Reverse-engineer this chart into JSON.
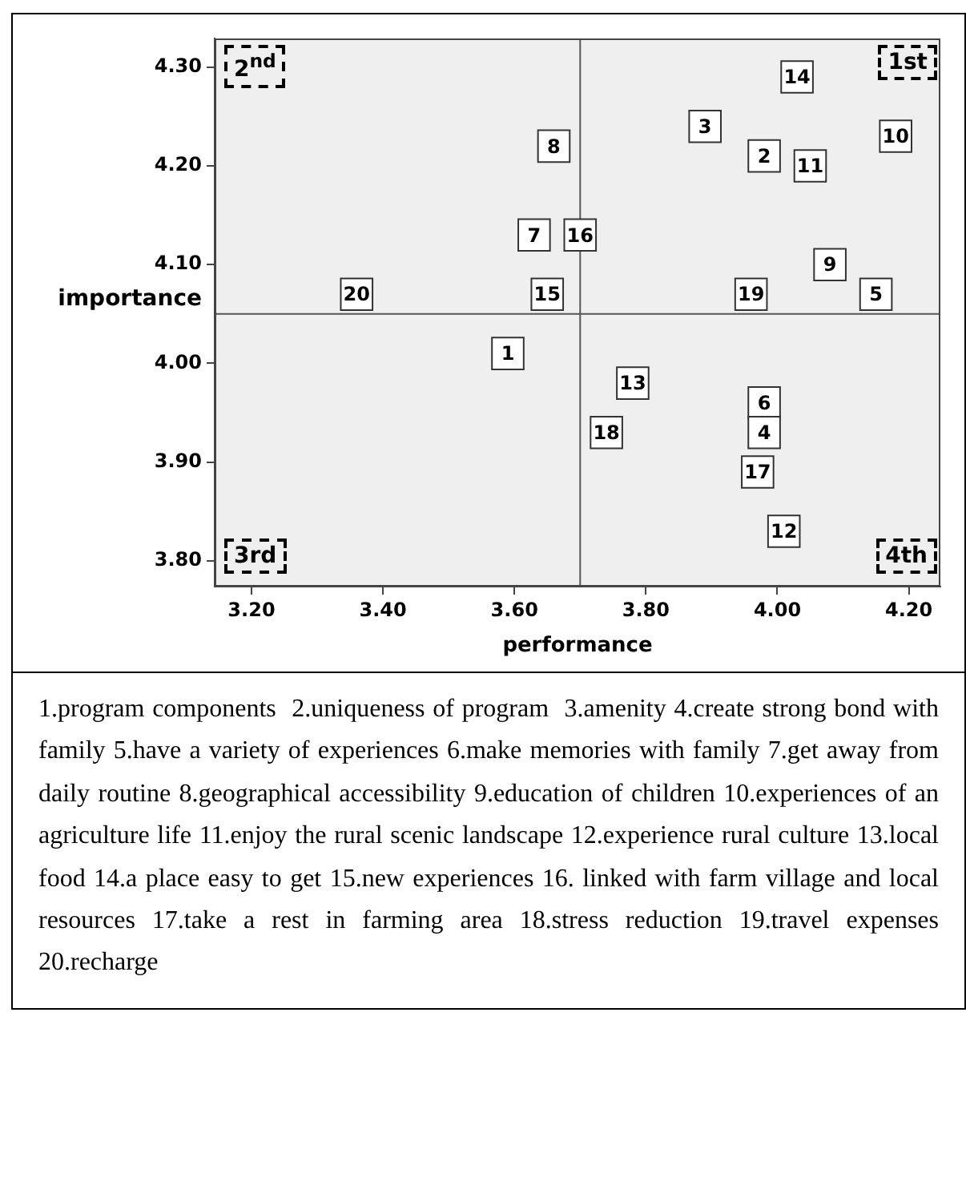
{
  "chart_data": {
    "type": "scatter",
    "xlabel": "performance",
    "ylabel": "importance",
    "series": [
      {
        "name": "1",
        "color": "#ffffff",
        "x": [
          3.59
        ],
        "values": [
          4.01
        ]
      },
      {
        "name": "2",
        "color": "#ffffff",
        "x": [
          3.98
        ],
        "values": [
          4.21
        ]
      },
      {
        "name": "3",
        "color": "#ffffff",
        "x": [
          3.89
        ],
        "values": [
          4.24
        ]
      },
      {
        "name": "4",
        "color": "#ffffff",
        "x": [
          3.98
        ],
        "values": [
          3.93
        ]
      },
      {
        "name": "5",
        "color": "#ffffff",
        "x": [
          4.15
        ],
        "values": [
          4.07
        ]
      },
      {
        "name": "6",
        "color": "#ffffff",
        "x": [
          3.98
        ],
        "values": [
          3.96
        ]
      },
      {
        "name": "7",
        "color": "#ffffff",
        "x": [
          3.63
        ],
        "values": [
          4.13
        ]
      },
      {
        "name": "8",
        "color": "#ffffff",
        "x": [
          3.66
        ],
        "values": [
          4.22
        ]
      },
      {
        "name": "9",
        "color": "#ffffff",
        "x": [
          4.08
        ],
        "values": [
          4.1
        ]
      },
      {
        "name": "10",
        "color": "#ffffff",
        "x": [
          4.18
        ],
        "values": [
          4.23
        ]
      },
      {
        "name": "11",
        "color": "#ffffff",
        "x": [
          4.05
        ],
        "values": [
          4.2
        ]
      },
      {
        "name": "12",
        "color": "#ffffff",
        "x": [
          4.01
        ],
        "values": [
          3.83
        ]
      },
      {
        "name": "13",
        "color": "#ffffff",
        "x": [
          3.78
        ],
        "values": [
          3.98
        ]
      },
      {
        "name": "14",
        "color": "#ffffff",
        "x": [
          4.03
        ],
        "values": [
          4.29
        ]
      },
      {
        "name": "15",
        "color": "#ffffff",
        "x": [
          3.65
        ],
        "values": [
          4.07
        ]
      },
      {
        "name": "16",
        "color": "#ffffff",
        "x": [
          3.7
        ],
        "values": [
          4.13
        ]
      },
      {
        "name": "17",
        "color": "#ffffff",
        "x": [
          3.97
        ],
        "values": [
          3.89
        ]
      },
      {
        "name": "18",
        "color": "#ffffff",
        "x": [
          3.74
        ],
        "values": [
          3.93
        ]
      },
      {
        "name": "19",
        "color": "#ffffff",
        "x": [
          3.96
        ],
        "values": [
          4.07
        ]
      },
      {
        "name": "20",
        "color": "#ffffff",
        "x": [
          3.36
        ],
        "values": [
          4.07
        ]
      }
    ],
    "marker": "square",
    "grid": false,
    "legend": false,
    "xlim": [
      3.144,
      4.248
    ],
    "ylim": [
      3.774,
      4.329
    ],
    "xticks": [
      {
        "value": 3.2,
        "label": "3.20"
      },
      {
        "value": 3.4,
        "label": "3.40"
      },
      {
        "value": 3.6,
        "label": "3.60"
      },
      {
        "value": 3.8,
        "label": "3.80"
      },
      {
        "value": 4.0,
        "label": "4.00"
      },
      {
        "value": 4.2,
        "label": "4.20"
      }
    ],
    "yticks": [
      {
        "value": 3.8,
        "label": "3.80"
      },
      {
        "value": 3.9,
        "label": "3.90"
      },
      {
        "value": 4.0,
        "label": "4.00"
      },
      {
        "value": 4.1,
        "label": "4.10"
      },
      {
        "value": 4.2,
        "label": "4.20"
      },
      {
        "value": 4.3,
        "label": "4.30"
      }
    ],
    "ref_lines": [
      {
        "axis": "x",
        "value": 3.7,
        "color": "#555555"
      },
      {
        "axis": "y",
        "value": 4.05,
        "color": "#555555"
      }
    ],
    "annotations": [
      "2$^{nd}$",
      "1st",
      "3rd",
      "4th",
      "1.program components  2.uniqueness of program  3.amenity 4.create strong bond with family 5.have a variety of experiences 6.make memories with family 7.get away from daily routine 8.geographical accessibility 9.education of children 10.experiences of an agriculture life 11.enjoy the rural scenic landscape 12.experience rural culture 13.local food 14.a place easy to get 15.new experiences 16. linked with farm village and local resources 17.take a rest in farming area 18.stress reduction 19.travel expenses 20.recharge"
    ]
  }
}
